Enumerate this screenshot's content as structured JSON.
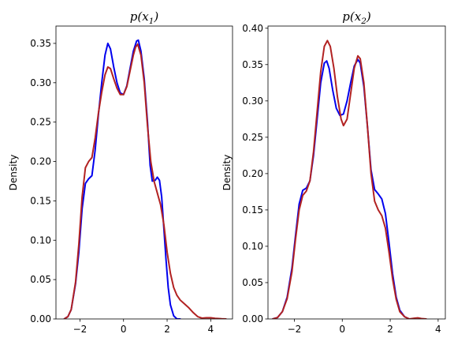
{
  "chart_data": [
    {
      "type": "line",
      "title": "p(x1)",
      "title_parts": {
        "base": "p(x",
        "sub": "1",
        "close": ")"
      },
      "ylabel": "Density",
      "xlim": [
        -3.1,
        5.0
      ],
      "ylim": [
        0,
        0.372
      ],
      "xticks": [
        -2,
        0,
        2,
        4
      ],
      "yticks": [
        0.0,
        0.05,
        0.1,
        0.15,
        0.2,
        0.25,
        0.3,
        0.35
      ],
      "ytick_labels": [
        "0.00",
        "0.05",
        "0.10",
        "0.15",
        "0.20",
        "0.25",
        "0.30",
        "0.35"
      ],
      "grid": false,
      "series": [
        {
          "color": "#0000ee",
          "points": [
            [
              -2.72,
              0.0
            ],
            [
              -2.55,
              0.003
            ],
            [
              -2.4,
              0.012
            ],
            [
              -2.2,
              0.045
            ],
            [
              -2.05,
              0.085
            ],
            [
              -1.9,
              0.14
            ],
            [
              -1.75,
              0.172
            ],
            [
              -1.6,
              0.178
            ],
            [
              -1.45,
              0.182
            ],
            [
              -1.3,
              0.215
            ],
            [
              -1.15,
              0.26
            ],
            [
              -1.0,
              0.3
            ],
            [
              -0.85,
              0.335
            ],
            [
              -0.72,
              0.35
            ],
            [
              -0.6,
              0.343
            ],
            [
              -0.45,
              0.32
            ],
            [
              -0.3,
              0.3
            ],
            [
              -0.15,
              0.287
            ],
            [
              0.0,
              0.285
            ],
            [
              0.15,
              0.296
            ],
            [
              0.3,
              0.318
            ],
            [
              0.45,
              0.34
            ],
            [
              0.6,
              0.353
            ],
            [
              0.68,
              0.354
            ],
            [
              0.8,
              0.34
            ],
            [
              0.95,
              0.305
            ],
            [
              1.1,
              0.25
            ],
            [
              1.22,
              0.195
            ],
            [
              1.32,
              0.175
            ],
            [
              1.45,
              0.176
            ],
            [
              1.55,
              0.18
            ],
            [
              1.65,
              0.176
            ],
            [
              1.75,
              0.155
            ],
            [
              1.85,
              0.115
            ],
            [
              1.95,
              0.075
            ],
            [
              2.05,
              0.04
            ],
            [
              2.15,
              0.018
            ],
            [
              2.3,
              0.004
            ],
            [
              2.45,
              0.0
            ],
            [
              2.6,
              0.0
            ]
          ]
        },
        {
          "color": "#b22222",
          "points": [
            [
              -2.72,
              0.0
            ],
            [
              -2.55,
              0.003
            ],
            [
              -2.4,
              0.012
            ],
            [
              -2.2,
              0.047
            ],
            [
              -2.05,
              0.095
            ],
            [
              -1.9,
              0.155
            ],
            [
              -1.75,
              0.192
            ],
            [
              -1.6,
              0.2
            ],
            [
              -1.45,
              0.205
            ],
            [
              -1.3,
              0.23
            ],
            [
              -1.15,
              0.262
            ],
            [
              -1.0,
              0.288
            ],
            [
              -0.85,
              0.31
            ],
            [
              -0.72,
              0.32
            ],
            [
              -0.6,
              0.318
            ],
            [
              -0.45,
              0.305
            ],
            [
              -0.3,
              0.293
            ],
            [
              -0.15,
              0.285
            ],
            [
              0.0,
              0.285
            ],
            [
              0.15,
              0.295
            ],
            [
              0.3,
              0.315
            ],
            [
              0.45,
              0.335
            ],
            [
              0.55,
              0.345
            ],
            [
              0.65,
              0.349
            ],
            [
              0.8,
              0.335
            ],
            [
              0.95,
              0.3
            ],
            [
              1.1,
              0.245
            ],
            [
              1.25,
              0.2
            ],
            [
              1.4,
              0.175
            ],
            [
              1.55,
              0.16
            ],
            [
              1.7,
              0.145
            ],
            [
              1.85,
              0.12
            ],
            [
              2.0,
              0.085
            ],
            [
              2.15,
              0.058
            ],
            [
              2.3,
              0.04
            ],
            [
              2.45,
              0.03
            ],
            [
              2.6,
              0.024
            ],
            [
              2.8,
              0.019
            ],
            [
              3.0,
              0.014
            ],
            [
              3.2,
              0.008
            ],
            [
              3.4,
              0.003
            ],
            [
              3.6,
              0.001
            ],
            [
              3.8,
              0.0015
            ],
            [
              4.0,
              0.0015
            ],
            [
              4.2,
              0.0008
            ],
            [
              4.5,
              0.0002
            ],
            [
              4.7,
              0.0
            ]
          ]
        }
      ]
    },
    {
      "type": "line",
      "title": "p(x2)",
      "title_parts": {
        "base": "p(x",
        "sub": "2",
        "close": ")"
      },
      "ylabel": "Density",
      "xlim": [
        -3.1,
        4.3
      ],
      "ylim": [
        0,
        0.403
      ],
      "xticks": [
        -2,
        0,
        2,
        4
      ],
      "yticks": [
        0.0,
        0.05,
        0.1,
        0.15,
        0.2,
        0.25,
        0.3,
        0.35,
        0.4
      ],
      "ytick_labels": [
        "0.00",
        "0.05",
        "0.10",
        "0.15",
        "0.20",
        "0.25",
        "0.30",
        "0.35",
        "0.40"
      ],
      "grid": false,
      "series": [
        {
          "color": "#0000ee",
          "points": [
            [
              -2.9,
              0.0
            ],
            [
              -2.7,
              0.002
            ],
            [
              -2.5,
              0.01
            ],
            [
              -2.3,
              0.03
            ],
            [
              -2.1,
              0.07
            ],
            [
              -1.95,
              0.115
            ],
            [
              -1.8,
              0.158
            ],
            [
              -1.65,
              0.177
            ],
            [
              -1.5,
              0.18
            ],
            [
              -1.35,
              0.19
            ],
            [
              -1.2,
              0.225
            ],
            [
              -1.05,
              0.275
            ],
            [
              -0.9,
              0.325
            ],
            [
              -0.75,
              0.352
            ],
            [
              -0.65,
              0.355
            ],
            [
              -0.55,
              0.345
            ],
            [
              -0.4,
              0.315
            ],
            [
              -0.25,
              0.29
            ],
            [
              -0.1,
              0.28
            ],
            [
              0.05,
              0.282
            ],
            [
              0.2,
              0.3
            ],
            [
              0.35,
              0.325
            ],
            [
              0.5,
              0.348
            ],
            [
              0.65,
              0.357
            ],
            [
              0.75,
              0.352
            ],
            [
              0.9,
              0.32
            ],
            [
              1.05,
              0.265
            ],
            [
              1.2,
              0.205
            ],
            [
              1.35,
              0.178
            ],
            [
              1.5,
              0.172
            ],
            [
              1.65,
              0.165
            ],
            [
              1.8,
              0.145
            ],
            [
              1.95,
              0.105
            ],
            [
              2.1,
              0.062
            ],
            [
              2.25,
              0.03
            ],
            [
              2.4,
              0.012
            ],
            [
              2.6,
              0.003
            ],
            [
              2.8,
              0.0
            ],
            [
              3.0,
              0.0
            ]
          ]
        },
        {
          "color": "#b22222",
          "points": [
            [
              -2.9,
              0.0
            ],
            [
              -2.7,
              0.002
            ],
            [
              -2.5,
              0.01
            ],
            [
              -2.3,
              0.028
            ],
            [
              -2.1,
              0.065
            ],
            [
              -1.95,
              0.11
            ],
            [
              -1.8,
              0.15
            ],
            [
              -1.65,
              0.17
            ],
            [
              -1.5,
              0.176
            ],
            [
              -1.35,
              0.19
            ],
            [
              -1.2,
              0.23
            ],
            [
              -1.05,
              0.285
            ],
            [
              -0.9,
              0.34
            ],
            [
              -0.75,
              0.375
            ],
            [
              -0.62,
              0.383
            ],
            [
              -0.5,
              0.375
            ],
            [
              -0.35,
              0.345
            ],
            [
              -0.2,
              0.305
            ],
            [
              -0.05,
              0.275
            ],
            [
              0.05,
              0.266
            ],
            [
              0.2,
              0.275
            ],
            [
              0.35,
              0.31
            ],
            [
              0.5,
              0.345
            ],
            [
              0.65,
              0.362
            ],
            [
              0.75,
              0.358
            ],
            [
              0.9,
              0.325
            ],
            [
              1.05,
              0.265
            ],
            [
              1.2,
              0.2
            ],
            [
              1.35,
              0.162
            ],
            [
              1.5,
              0.15
            ],
            [
              1.65,
              0.142
            ],
            [
              1.8,
              0.125
            ],
            [
              1.95,
              0.092
            ],
            [
              2.1,
              0.055
            ],
            [
              2.25,
              0.027
            ],
            [
              2.4,
              0.01
            ],
            [
              2.6,
              0.003
            ],
            [
              2.8,
              0.0
            ],
            [
              3.0,
              0.001
            ],
            [
              3.15,
              0.0015
            ],
            [
              3.3,
              0.0005
            ],
            [
              3.5,
              0.0
            ]
          ]
        }
      ]
    }
  ]
}
